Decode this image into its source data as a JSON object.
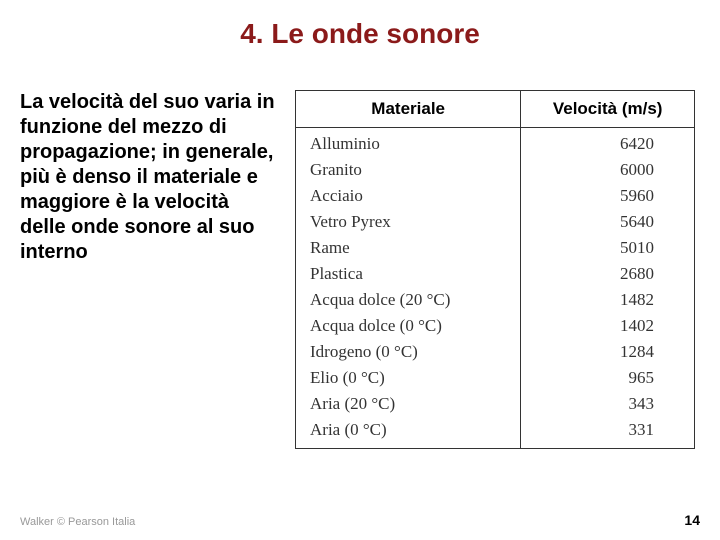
{
  "title": "4. Le onde sonore",
  "paragraph": "La velocità del suo varia in funzione del mezzo di propagazione; in generale, più è denso il materiale e maggiore è la velocità delle onde sonore al suo interno",
  "table": {
    "columns": [
      "Materiale",
      "Velocità (m/s)"
    ],
    "rows": [
      [
        "Alluminio",
        "6420"
      ],
      [
        "Granito",
        "6000"
      ],
      [
        "Acciaio",
        "5960"
      ],
      [
        "Vetro Pyrex",
        "5640"
      ],
      [
        "Rame",
        "5010"
      ],
      [
        "Plastica",
        "2680"
      ],
      [
        "Acqua dolce (20 °C)",
        "1482"
      ],
      [
        "Acqua dolce (0 °C)",
        "1402"
      ],
      [
        "Idrogeno (0 °C)",
        "1284"
      ],
      [
        "Elio (0 °C)",
        "965"
      ],
      [
        "Aria (20 °C)",
        "343"
      ],
      [
        "Aria (0 °C)",
        "331"
      ]
    ],
    "header_bg": "#ffffff",
    "header_color": "#000000",
    "header_fontsize": 17,
    "cell_fontsize": 17,
    "cell_font": "Georgia, Times New Roman, serif",
    "border_color": "#333333",
    "col_align": [
      "left",
      "right"
    ]
  },
  "footer": {
    "copyright": "Walker © Pearson Italia",
    "page_number": "14"
  },
  "colors": {
    "title_color": "#8b1a1a",
    "body_text_color": "#000000",
    "background": "#ffffff",
    "footer_color": "#999999"
  },
  "typography": {
    "title_fontsize": 28,
    "body_fontsize": 20,
    "body_font": "Arial, Helvetica, sans-serif"
  }
}
